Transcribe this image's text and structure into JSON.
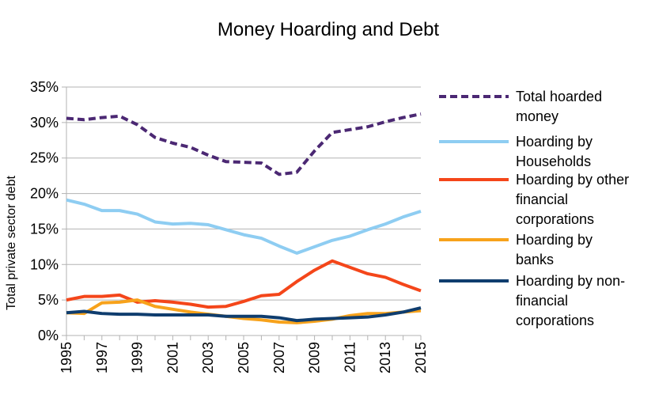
{
  "chart_data": {
    "type": "line",
    "title": "Money Hoarding and Debt",
    "xlabel": "",
    "ylabel": "Total private sector debt",
    "x": [
      1995,
      1996,
      1997,
      1998,
      1999,
      2000,
      2001,
      2002,
      2003,
      2004,
      2005,
      2006,
      2007,
      2008,
      2009,
      2010,
      2011,
      2012,
      2013,
      2014,
      2015
    ],
    "xticks": [
      "1995",
      "1997",
      "1999",
      "2001",
      "2003",
      "2005",
      "2007",
      "2009",
      "2011",
      "2013",
      "2015"
    ],
    "ylim": [
      0,
      35
    ],
    "yticks": [
      "0%",
      "5%",
      "10%",
      "15%",
      "20%",
      "25%",
      "30%",
      "35%"
    ],
    "grid": "horizontal",
    "legend_position": "right",
    "series": [
      {
        "name": "Total hoarded money",
        "legend_lines": [
          "Total hoarded",
          "money"
        ],
        "color": "#4b2873",
        "dashed": true,
        "values": [
          30.6,
          30.4,
          30.7,
          30.9,
          29.7,
          27.9,
          27.1,
          26.5,
          25.4,
          24.5,
          24.4,
          24.3,
          22.7,
          23.0,
          26.0,
          28.6,
          29.0,
          29.4,
          30.1,
          30.7,
          31.2
        ]
      },
      {
        "name": "Hoarding by Households",
        "legend_lines": [
          "Hoarding by",
          "Households"
        ],
        "color": "#8ecdf2",
        "dashed": false,
        "values": [
          19.1,
          18.5,
          17.6,
          17.6,
          17.1,
          16.0,
          15.7,
          15.8,
          15.6,
          14.9,
          14.2,
          13.7,
          12.6,
          11.6,
          12.5,
          13.4,
          14.0,
          14.9,
          15.7,
          16.7,
          17.5
        ]
      },
      {
        "name": "Hoarding by other financial corporations",
        "legend_lines": [
          "Hoarding by other",
          "financial",
          "corporations"
        ],
        "color": "#f4461a",
        "dashed": false,
        "values": [
          5.0,
          5.5,
          5.5,
          5.7,
          4.7,
          4.9,
          4.7,
          4.4,
          4.0,
          4.1,
          4.8,
          5.6,
          5.8,
          7.6,
          9.2,
          10.5,
          9.6,
          8.7,
          8.2,
          7.2,
          6.3
        ]
      },
      {
        "name": "Hoarding by banks",
        "legend_lines": [
          "Hoarding by",
          "banks"
        ],
        "color": "#f7a21b",
        "dashed": false,
        "values": [
          3.2,
          3.1,
          4.6,
          4.7,
          5.0,
          4.1,
          3.7,
          3.3,
          3.0,
          2.7,
          2.4,
          2.2,
          1.9,
          1.8,
          2.0,
          2.3,
          2.8,
          3.1,
          3.1,
          3.3,
          3.5
        ]
      },
      {
        "name": "Hoarding by non-financial corporations",
        "legend_lines": [
          "Hoarding by non-",
          "financial",
          "corporations"
        ],
        "color": "#0f3d6e",
        "dashed": false,
        "values": [
          3.2,
          3.4,
          3.1,
          3.0,
          3.0,
          2.9,
          2.9,
          2.9,
          2.9,
          2.7,
          2.7,
          2.7,
          2.5,
          2.1,
          2.3,
          2.4,
          2.5,
          2.6,
          2.9,
          3.3,
          3.9
        ]
      }
    ]
  }
}
